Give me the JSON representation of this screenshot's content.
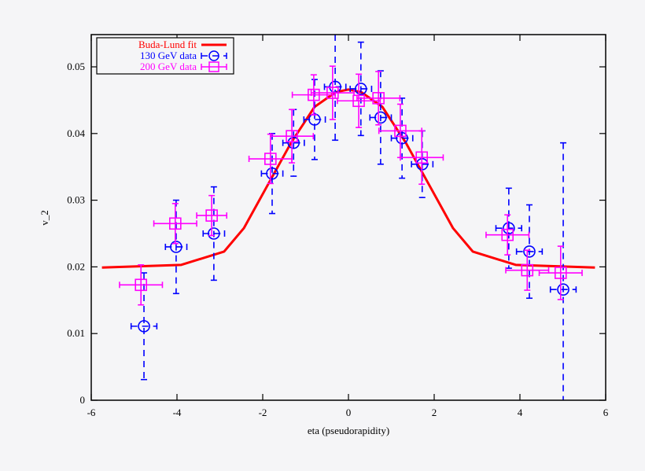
{
  "chart_data": {
    "type": "scatter",
    "title": "",
    "xlabel": "eta (pseudorapidity)",
    "ylabel": "v_2",
    "xlim": [
      -6,
      6
    ],
    "ylim": [
      0,
      0.055
    ],
    "xticks": [
      "-6",
      "-4",
      "-2",
      "0",
      "2",
      "4",
      "6"
    ],
    "yticks": [
      "0",
      "0.01",
      "0.02",
      "0.03",
      "0.04",
      "0.05"
    ],
    "grid": false,
    "legend_position": "top-left",
    "series": [
      {
        "name": "Buda-Lund fit",
        "kind": "line",
        "color": "#ff0000",
        "x": [
          -5.75,
          -3.9,
          -2.9,
          -2.44,
          -1.89,
          -1.34,
          -0.79,
          -0.3,
          0,
          0.3,
          0.79,
          1.34,
          1.89,
          2.44,
          2.9,
          3.9,
          5.75
        ],
        "y": [
          0.0199,
          0.0203,
          0.0223,
          0.0258,
          0.0322,
          0.0386,
          0.044,
          0.0462,
          0.0466,
          0.0462,
          0.044,
          0.0386,
          0.0322,
          0.0258,
          0.0223,
          0.0203,
          0.0199
        ]
      },
      {
        "name": "130 GeV data",
        "kind": "points",
        "marker": "circle",
        "color": "#0000ff",
        "x": [
          -4.77,
          -4.02,
          -3.14,
          -1.78,
          -1.28,
          -0.79,
          -0.31,
          0.29,
          0.75,
          1.25,
          1.72,
          3.74,
          4.22,
          5.01
        ],
        "y": [
          0.0111,
          0.023,
          0.025,
          0.034,
          0.0386,
          0.0421,
          0.047,
          0.0467,
          0.0424,
          0.0393,
          0.0354,
          0.0258,
          0.0223,
          0.0166
        ],
        "xerr": [
          0.3,
          0.25,
          0.25,
          0.25,
          0.25,
          0.25,
          0.25,
          0.25,
          0.25,
          0.25,
          0.25,
          0.3,
          0.3,
          0.3
        ],
        "yerr": [
          0.008,
          0.007,
          0.007,
          0.006,
          0.005,
          0.006,
          0.008,
          0.007,
          0.007,
          0.006,
          0.005,
          0.006,
          0.007,
          0.022
        ]
      },
      {
        "name": "200 GeV data",
        "kind": "points",
        "marker": "square",
        "color": "#ff00ff",
        "x": [
          -4.84,
          -4.04,
          -3.19,
          -1.82,
          -1.32,
          -0.81,
          -0.37,
          0.24,
          0.7,
          1.21,
          1.71,
          3.71,
          4.17,
          4.95
        ],
        "y": [
          0.0173,
          0.0265,
          0.0277,
          0.0362,
          0.0396,
          0.0458,
          0.0461,
          0.0449,
          0.0453,
          0.0404,
          0.0364,
          0.0248,
          0.0195,
          0.0191
        ],
        "xerr": [
          0.5,
          0.5,
          0.35,
          0.5,
          0.5,
          0.5,
          0.5,
          0.5,
          0.5,
          0.5,
          0.5,
          0.5,
          0.5,
          0.5
        ],
        "yerr": [
          0.003,
          0.003,
          0.003,
          0.0037,
          0.004,
          0.003,
          0.004,
          0.004,
          0.004,
          0.004,
          0.004,
          0.003,
          0.003,
          0.004
        ]
      }
    ]
  }
}
